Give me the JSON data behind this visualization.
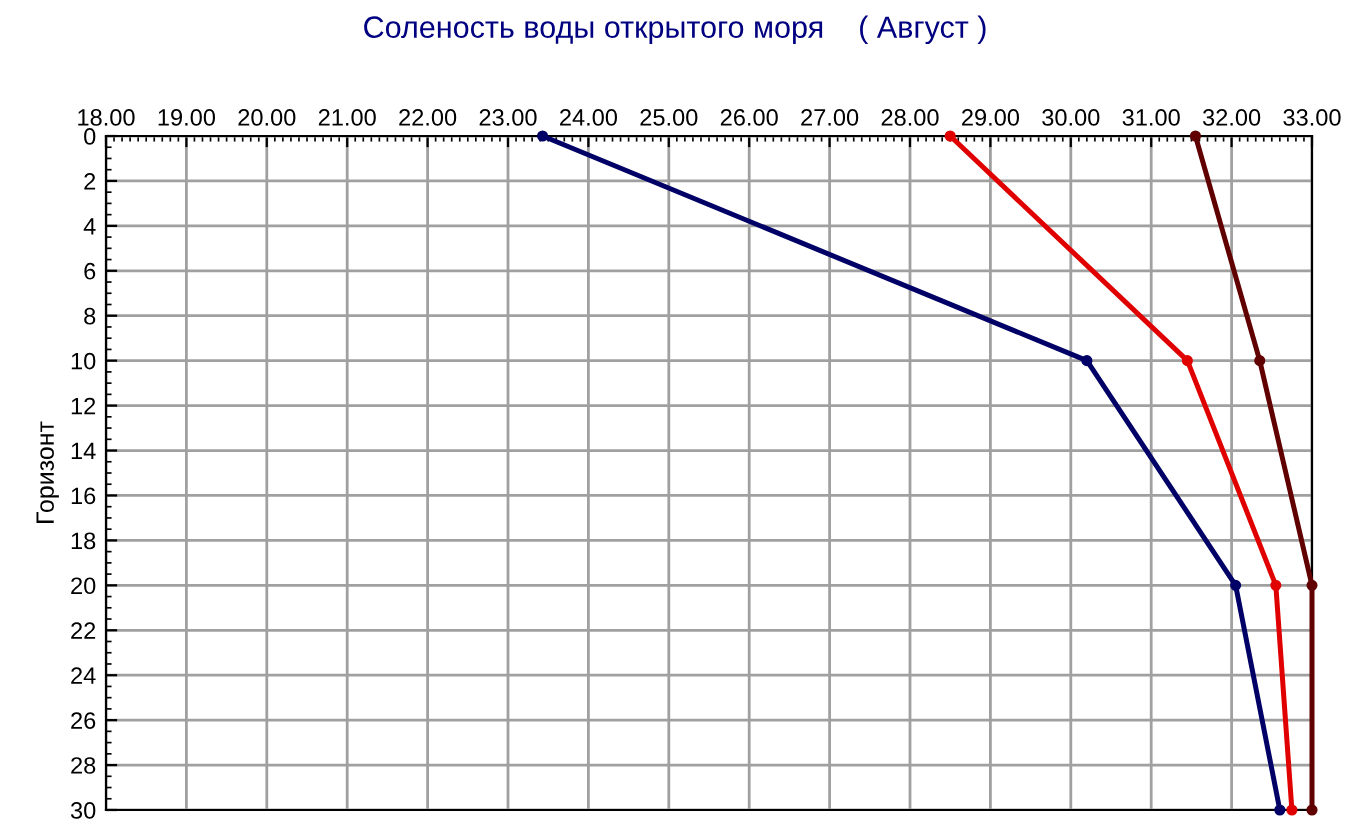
{
  "chart_data": {
    "type": "line",
    "title": "Соленость воды открытого моря    ( Август )",
    "ylabel": "Горизонт",
    "series": [
      {
        "color": "#000066",
        "x": [
          23.43,
          30.2,
          32.05,
          32.6
        ],
        "values": [
          0,
          10,
          20,
          30
        ]
      },
      {
        "color": "#e00000",
        "x": [
          28.5,
          31.45,
          32.55,
          32.75
        ],
        "values": [
          0,
          10,
          20,
          30
        ]
      },
      {
        "color": "#600000",
        "x": [
          31.55,
          32.35,
          33.0,
          33.0
        ],
        "values": [
          0,
          10,
          20,
          30
        ]
      }
    ],
    "xlim": [
      18,
      33
    ],
    "xticks": [
      {
        "value": 18,
        "label": "18.00"
      },
      {
        "value": 19,
        "label": "19.00"
      },
      {
        "value": 20,
        "label": "20.00"
      },
      {
        "value": 21,
        "label": "21.00"
      },
      {
        "value": 22,
        "label": "22.00"
      },
      {
        "value": 23,
        "label": "23.00"
      },
      {
        "value": 24,
        "label": "24.00"
      },
      {
        "value": 25,
        "label": "25.00"
      },
      {
        "value": 26,
        "label": "26.00"
      },
      {
        "value": 27,
        "label": "27.00"
      },
      {
        "value": 28,
        "label": "28.00"
      },
      {
        "value": 29,
        "label": "29.00"
      },
      {
        "value": 30,
        "label": "30.00"
      },
      {
        "value": 31,
        "label": "31.00"
      },
      {
        "value": 32,
        "label": "32.00"
      },
      {
        "value": 33,
        "label": "33.00"
      }
    ],
    "ylim": [
      30,
      0
    ],
    "yticks": [
      0,
      2,
      4,
      6,
      8,
      10,
      12,
      14,
      16,
      18,
      20,
      22,
      24,
      26,
      28,
      30
    ],
    "grid": true,
    "marker": "circle",
    "line_style": "solid",
    "legend": false
  }
}
